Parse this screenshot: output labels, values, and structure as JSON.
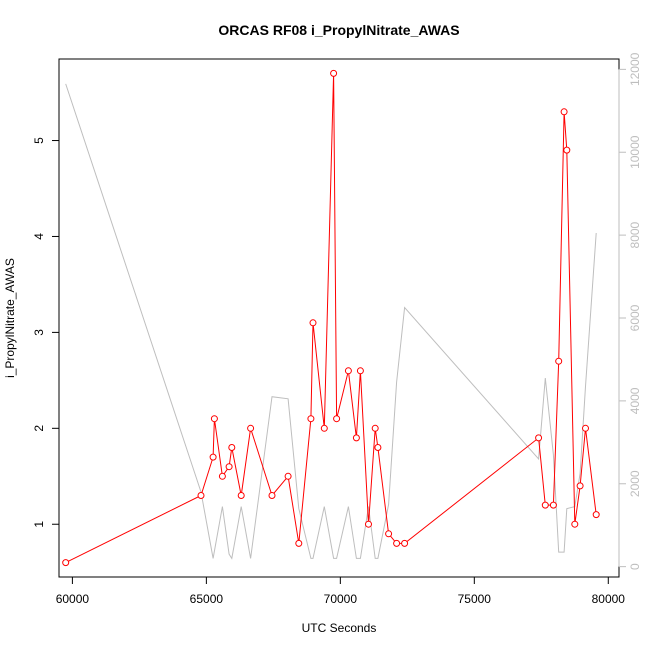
{
  "chart_data": {
    "type": "line",
    "title": "ORCAS RF08 i_PropylNitrate_AWAS",
    "xlabel": "UTC Seconds",
    "ylabel": "i_PropylNitrate_AWAS",
    "xlim": [
      59500,
      80400
    ],
    "ylim": [
      0.45,
      5.85
    ],
    "y2lim": [
      -250,
      12250
    ],
    "x_ticks": [
      60000,
      65000,
      70000,
      75000,
      80000
    ],
    "y_ticks": [
      1,
      2,
      3,
      4,
      5
    ],
    "y2_ticks": [
      0,
      2000,
      4000,
      6000,
      8000,
      10000,
      12000
    ],
    "grid": false,
    "legend": "none",
    "colors": {
      "primary": "#ff0000",
      "secondary": "#bebebe",
      "axis": "#000000"
    },
    "series": [
      {
        "axis": "left",
        "style": "line+markers",
        "x": [
          59750,
          64800,
          65250,
          65300,
          65600,
          65850,
          65950,
          66300,
          66650,
          67450,
          68050,
          68450,
          68900,
          68980,
          69400,
          69750,
          69860,
          70300,
          70600,
          70750,
          71050,
          71300,
          71400,
          71800,
          72100,
          72400,
          77400,
          77650,
          77950,
          78150,
          78350,
          78450,
          78750,
          78950,
          79150,
          79550
        ],
        "y": [
          0.6,
          1.3,
          1.7,
          2.1,
          1.5,
          1.6,
          1.8,
          1.3,
          2.0,
          1.3,
          1.5,
          0.8,
          2.1,
          3.1,
          2.0,
          5.7,
          2.1,
          2.6,
          1.9,
          2.6,
          1.0,
          2.0,
          1.8,
          0.9,
          0.8,
          0.8,
          1.9,
          1.2,
          1.2,
          2.7,
          5.3,
          4.9,
          1.0,
          1.4,
          2.0,
          1.1
        ]
      },
      {
        "axis": "right",
        "style": "line",
        "x": [
          59750,
          64800,
          65250,
          65600,
          65850,
          65950,
          66300,
          66650,
          67450,
          68050,
          68450,
          68900,
          68980,
          69400,
          69750,
          69860,
          70300,
          70600,
          70750,
          71050,
          71300,
          71400,
          71800,
          72100,
          72400,
          77400,
          77650,
          77950,
          78150,
          78350,
          78450,
          78750,
          78950,
          79150,
          79550
        ],
        "y": [
          11650,
          1800,
          200,
          1450,
          300,
          200,
          1450,
          200,
          4100,
          4050,
          1400,
          200,
          200,
          1450,
          200,
          200,
          1450,
          200,
          200,
          1450,
          200,
          200,
          1500,
          4450,
          6250,
          2600,
          4550,
          2700,
          350,
          350,
          1400,
          1450,
          2250,
          4350,
          8050
        ]
      }
    ]
  }
}
